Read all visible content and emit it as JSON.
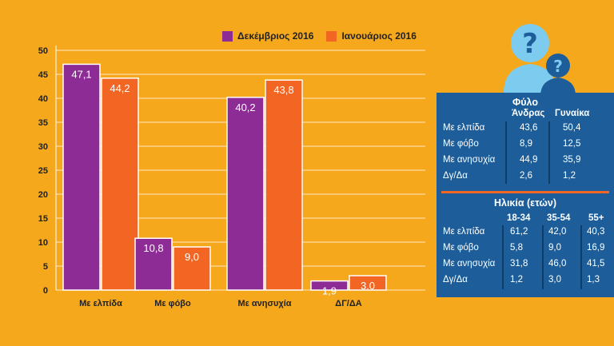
{
  "colors": {
    "dec": "#8E2C96",
    "jan": "#F26522",
    "bg": "#F5A81C",
    "panel": "#1D5E9A"
  },
  "legend": {
    "dec": "Δεκέμβριος 2016",
    "jan": "Ιανουάριος 2016"
  },
  "chart_data": {
    "type": "bar",
    "categories": [
      "Με ελπίδα",
      "Με φόβο",
      "Με ανησυχία",
      "ΔΓ/ΔΑ"
    ],
    "series": [
      {
        "name": "Δεκέμβριος 2016",
        "values": [
          47.1,
          10.8,
          40.2,
          1.9
        ],
        "labels": [
          "47,1",
          "10,8",
          "40,2",
          "1,9"
        ]
      },
      {
        "name": "Ιανουάριος 2016",
        "values": [
          44.2,
          9.0,
          43.8,
          3.0
        ],
        "labels": [
          "44,2",
          "9,0",
          "43,8",
          "3,0"
        ]
      }
    ],
    "ylim": [
      0,
      50
    ],
    "yticks": [
      "0",
      "5",
      "10",
      "15",
      "20",
      "25",
      "30",
      "35",
      "40",
      "45",
      "50"
    ],
    "grid": true
  },
  "panel": {
    "gender": {
      "title": "Φύλο",
      "columns": [
        "Άνδρας",
        "Γυναίκα"
      ],
      "rows": [
        {
          "label": "Με ελπίδα",
          "values": [
            "43,6",
            "50,4"
          ]
        },
        {
          "label": "Με φόβο",
          "values": [
            "8,9",
            "12,5"
          ]
        },
        {
          "label": "Με ανησυχία",
          "values": [
            "44,9",
            "35,9"
          ]
        },
        {
          "label": "Δγ/Δα",
          "values": [
            "2,6",
            "1,2"
          ]
        }
      ]
    },
    "age": {
      "title": "Ηλικία (ετών)",
      "columns": [
        "18-34",
        "35-54",
        "55+"
      ],
      "rows": [
        {
          "label": "Με ελπίδα",
          "values": [
            "61,2",
            "42,0",
            "40,3"
          ]
        },
        {
          "label": "Με φόβο",
          "values": [
            "5,8",
            "9,0",
            "16,9"
          ]
        },
        {
          "label": "Με ανησυχία",
          "values": [
            "31,8",
            "46,0",
            "41,5"
          ]
        },
        {
          "label": "Δγ/Δα",
          "values": [
            "1,2",
            "3,0",
            "1,3"
          ]
        }
      ]
    }
  }
}
